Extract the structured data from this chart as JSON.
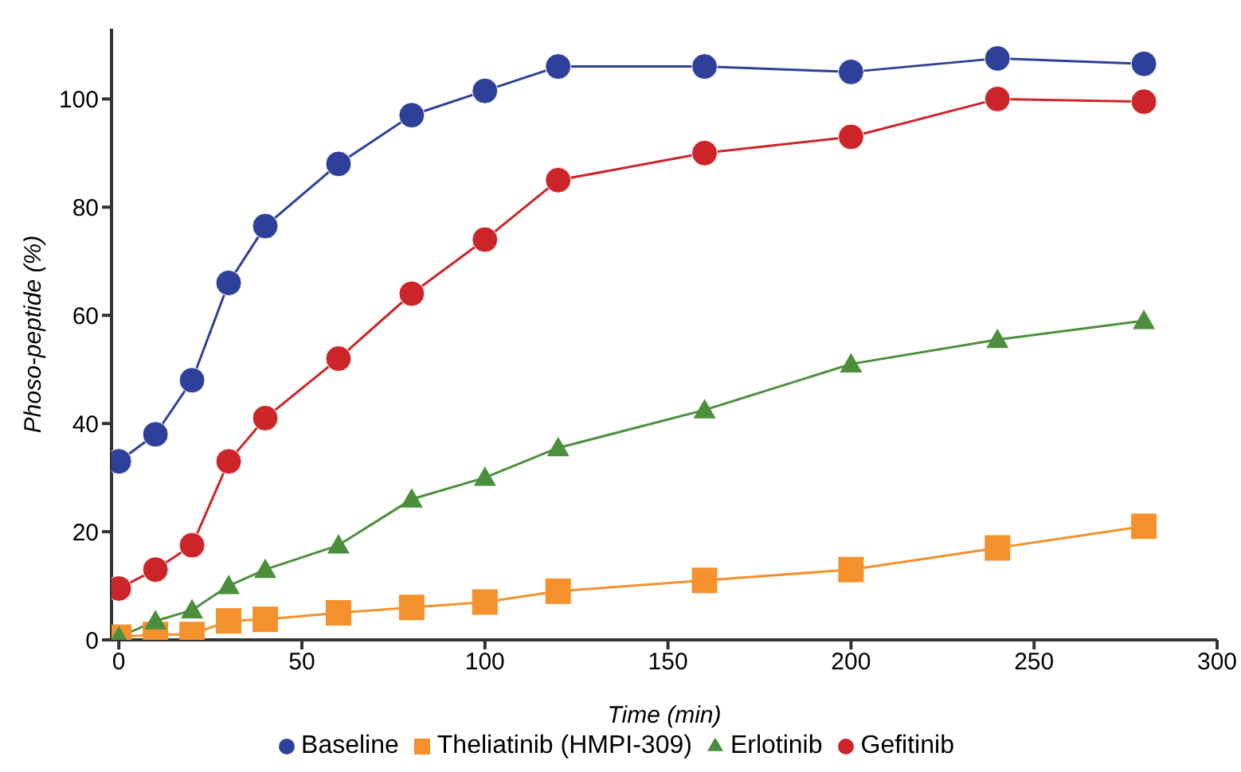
{
  "chart_data": {
    "type": "line",
    "xlabel": "Time (min)",
    "ylabel": "Phoso-peptide (%)",
    "xlim": [
      -2,
      300
    ],
    "xticks": [
      0,
      50,
      100,
      150,
      200,
      250,
      300
    ],
    "ylim": [
      0,
      113
    ],
    "yticks": [
      0,
      20,
      40,
      60,
      80,
      100
    ],
    "grid": false,
    "legend": "bottom",
    "line_style": "solid",
    "series": [
      {
        "name": "Baseline",
        "color": "#2e4099",
        "marker": "circle",
        "x": [
          0,
          10,
          20,
          30,
          40,
          60,
          80,
          100,
          120,
          160,
          200,
          240,
          280
        ],
        "values": [
          33,
          38,
          48,
          66,
          76.5,
          88,
          97,
          101.5,
          106,
          106,
          105,
          107.5,
          106.5
        ]
      },
      {
        "name": "Theliatinib (HMPI-309)",
        "color": "#f4912c",
        "marker": "square",
        "x": [
          0,
          10,
          20,
          30,
          40,
          60,
          80,
          100,
          120,
          160,
          200,
          240,
          280
        ],
        "values": [
          0.5,
          1,
          1,
          3.5,
          3.8,
          5,
          6,
          7,
          9,
          11,
          13,
          17,
          21
        ]
      },
      {
        "name": "Erlotinib",
        "color": "#4b8f3c",
        "marker": "triangle",
        "x": [
          0,
          10,
          20,
          30,
          40,
          60,
          80,
          100,
          120,
          160,
          200,
          240,
          280
        ],
        "values": [
          0.5,
          3.5,
          5.5,
          10,
          13,
          17.5,
          26,
          30,
          35.5,
          42.5,
          51,
          55.5,
          59
        ]
      },
      {
        "name": "Gefitinib",
        "color": "#cc2529",
        "marker": "circle",
        "x": [
          0,
          10,
          20,
          30,
          40,
          60,
          80,
          100,
          120,
          160,
          200,
          240,
          280
        ],
        "values": [
          9.5,
          13,
          17.5,
          33,
          41,
          52,
          64,
          74,
          85,
          90,
          93,
          100,
          99.5
        ]
      }
    ]
  }
}
